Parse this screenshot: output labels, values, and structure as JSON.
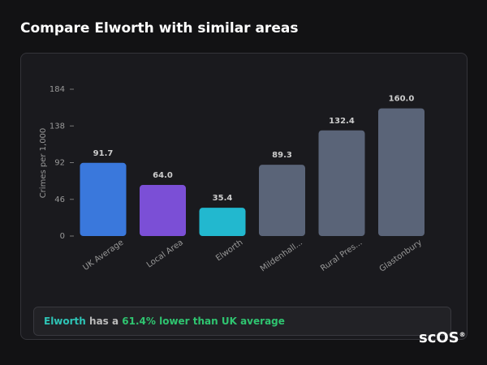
{
  "header": {
    "title": "Compare Elworth with similar areas"
  },
  "chart_data": {
    "type": "bar",
    "y_label": "Crimes per 1,000",
    "categories": [
      "UK Average",
      "Local Area",
      "Elworth",
      "Mildenhall...",
      "Rural Pres...",
      "Glastonbury"
    ],
    "values": [
      91.7,
      64.0,
      35.4,
      89.3,
      132.4,
      160.0
    ],
    "value_labels": [
      "91.7",
      "64.0",
      "35.4",
      "89.3",
      "132.4",
      "160.0"
    ],
    "colors": [
      "#3a78dc",
      "#7b4fd6",
      "#22b8cf",
      "#5a6478",
      "#5a6478",
      "#5a6478"
    ],
    "ylim": [
      0,
      184
    ],
    "yticks": [
      0,
      46,
      92,
      138,
      184
    ],
    "grid": false
  },
  "summary": {
    "subject": "Elworth",
    "text": "has a",
    "highlight": "61.4% lower than UK average"
  },
  "logo": {
    "text": "scOS",
    "mark": "®"
  }
}
